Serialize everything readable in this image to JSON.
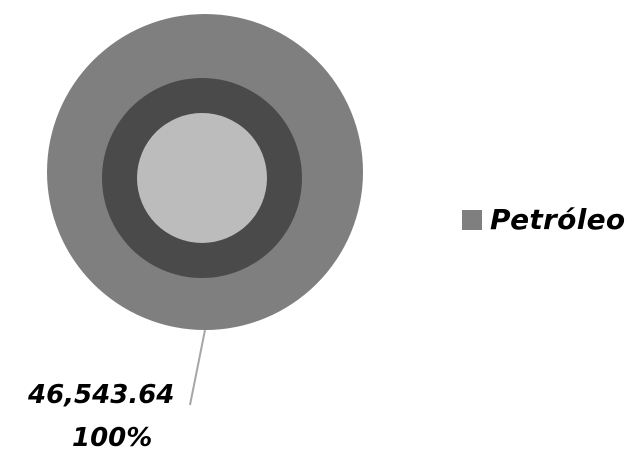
{
  "chart_data": {
    "type": "pie",
    "title": "",
    "series": [
      {
        "name": "Petróleo",
        "values": [
          46543.64
        ]
      }
    ],
    "categories": [
      "Petróleo"
    ],
    "data_labels": [
      {
        "value_text": "46,543.64",
        "percent_text": "100%"
      }
    ],
    "legend_position": "right",
    "colors": {
      "outer_ring": "#7f7f7f",
      "middle_ring": "#4a4a4a",
      "inner_disc": "#bcbcbc",
      "legend_swatch": "#7f7f7f",
      "leader_line": "#a6a6a6"
    }
  }
}
